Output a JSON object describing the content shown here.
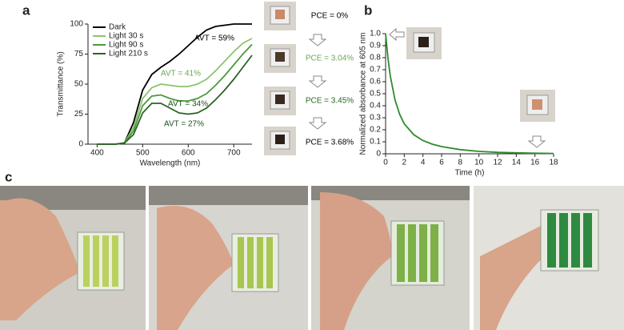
{
  "panel_labels": [
    "a",
    "b",
    "c"
  ],
  "chart_data": [
    {
      "type": "line",
      "xlabel": "Wavelength (nm)",
      "ylabel": "Transmittance (%)",
      "x": [
        400,
        420,
        440,
        460,
        480,
        500,
        520,
        540,
        560,
        580,
        600,
        620,
        640,
        660,
        680,
        700,
        720,
        740
      ],
      "series": [
        {
          "name": "Dark",
          "color": "#000000",
          "values": [
            0,
            0,
            0,
            1,
            18,
            45,
            58,
            64,
            69,
            75,
            82,
            89,
            95,
            98,
            99,
            100,
            100,
            100
          ]
        },
        {
          "name": "Light 30 s",
          "color": "#8cc46c",
          "values": [
            0,
            0,
            0,
            1,
            14,
            38,
            47,
            50,
            49,
            48,
            48,
            50,
            54,
            61,
            69,
            77,
            84,
            88
          ]
        },
        {
          "name": "Light 90 s",
          "color": "#4c9a3c",
          "values": [
            0,
            0,
            0,
            1,
            11,
            32,
            40,
            41,
            38,
            36,
            36,
            38,
            42,
            49,
            57,
            66,
            75,
            83
          ]
        },
        {
          "name": "Light 210 s",
          "color": "#2a6424",
          "values": [
            0,
            0,
            0,
            1,
            8,
            26,
            34,
            34,
            30,
            26,
            25,
            26,
            30,
            37,
            45,
            54,
            64,
            74
          ]
        }
      ],
      "annotations": [
        "AVT = 59%",
        "AVT = 41%",
        "AVT = 34%",
        "AVT = 27%"
      ],
      "pce_labels": [
        "PCE = 0%",
        "PCE = 3.04%",
        "PCE = 3.45%",
        "PCE = 3.68%"
      ],
      "xlim": [
        380,
        740
      ],
      "xticks": [
        400,
        500,
        600,
        700
      ],
      "ylim": [
        0,
        100
      ],
      "yticks": [
        0,
        25,
        50,
        75,
        100
      ],
      "legend": "upper left"
    },
    {
      "type": "line",
      "xlabel": "Time (h)",
      "ylabel": "Normalized absorbance at 605 nm",
      "x": [
        0,
        0.25,
        0.5,
        1,
        1.5,
        2,
        3,
        4,
        5,
        6,
        8,
        10,
        12,
        14,
        16,
        17,
        18
      ],
      "series": [
        {
          "color": "#2e8b2e",
          "values": [
            1.0,
            0.8,
            0.65,
            0.45,
            0.33,
            0.25,
            0.16,
            0.11,
            0.08,
            0.06,
            0.035,
            0.02,
            0.012,
            0.008,
            0.005,
            0.004,
            0.003
          ]
        }
      ],
      "xlim": [
        0,
        18
      ],
      "xticks": [
        0,
        2,
        4,
        6,
        8,
        10,
        12,
        14,
        16,
        18
      ],
      "ylim": [
        0,
        1
      ],
      "yticks": [
        0,
        0.1,
        0.2,
        0.3,
        0.4,
        0.5,
        0.6,
        0.7,
        0.8,
        0.9,
        {
          "value": 1,
          "label": "1.0"
        }
      ]
    }
  ]
}
